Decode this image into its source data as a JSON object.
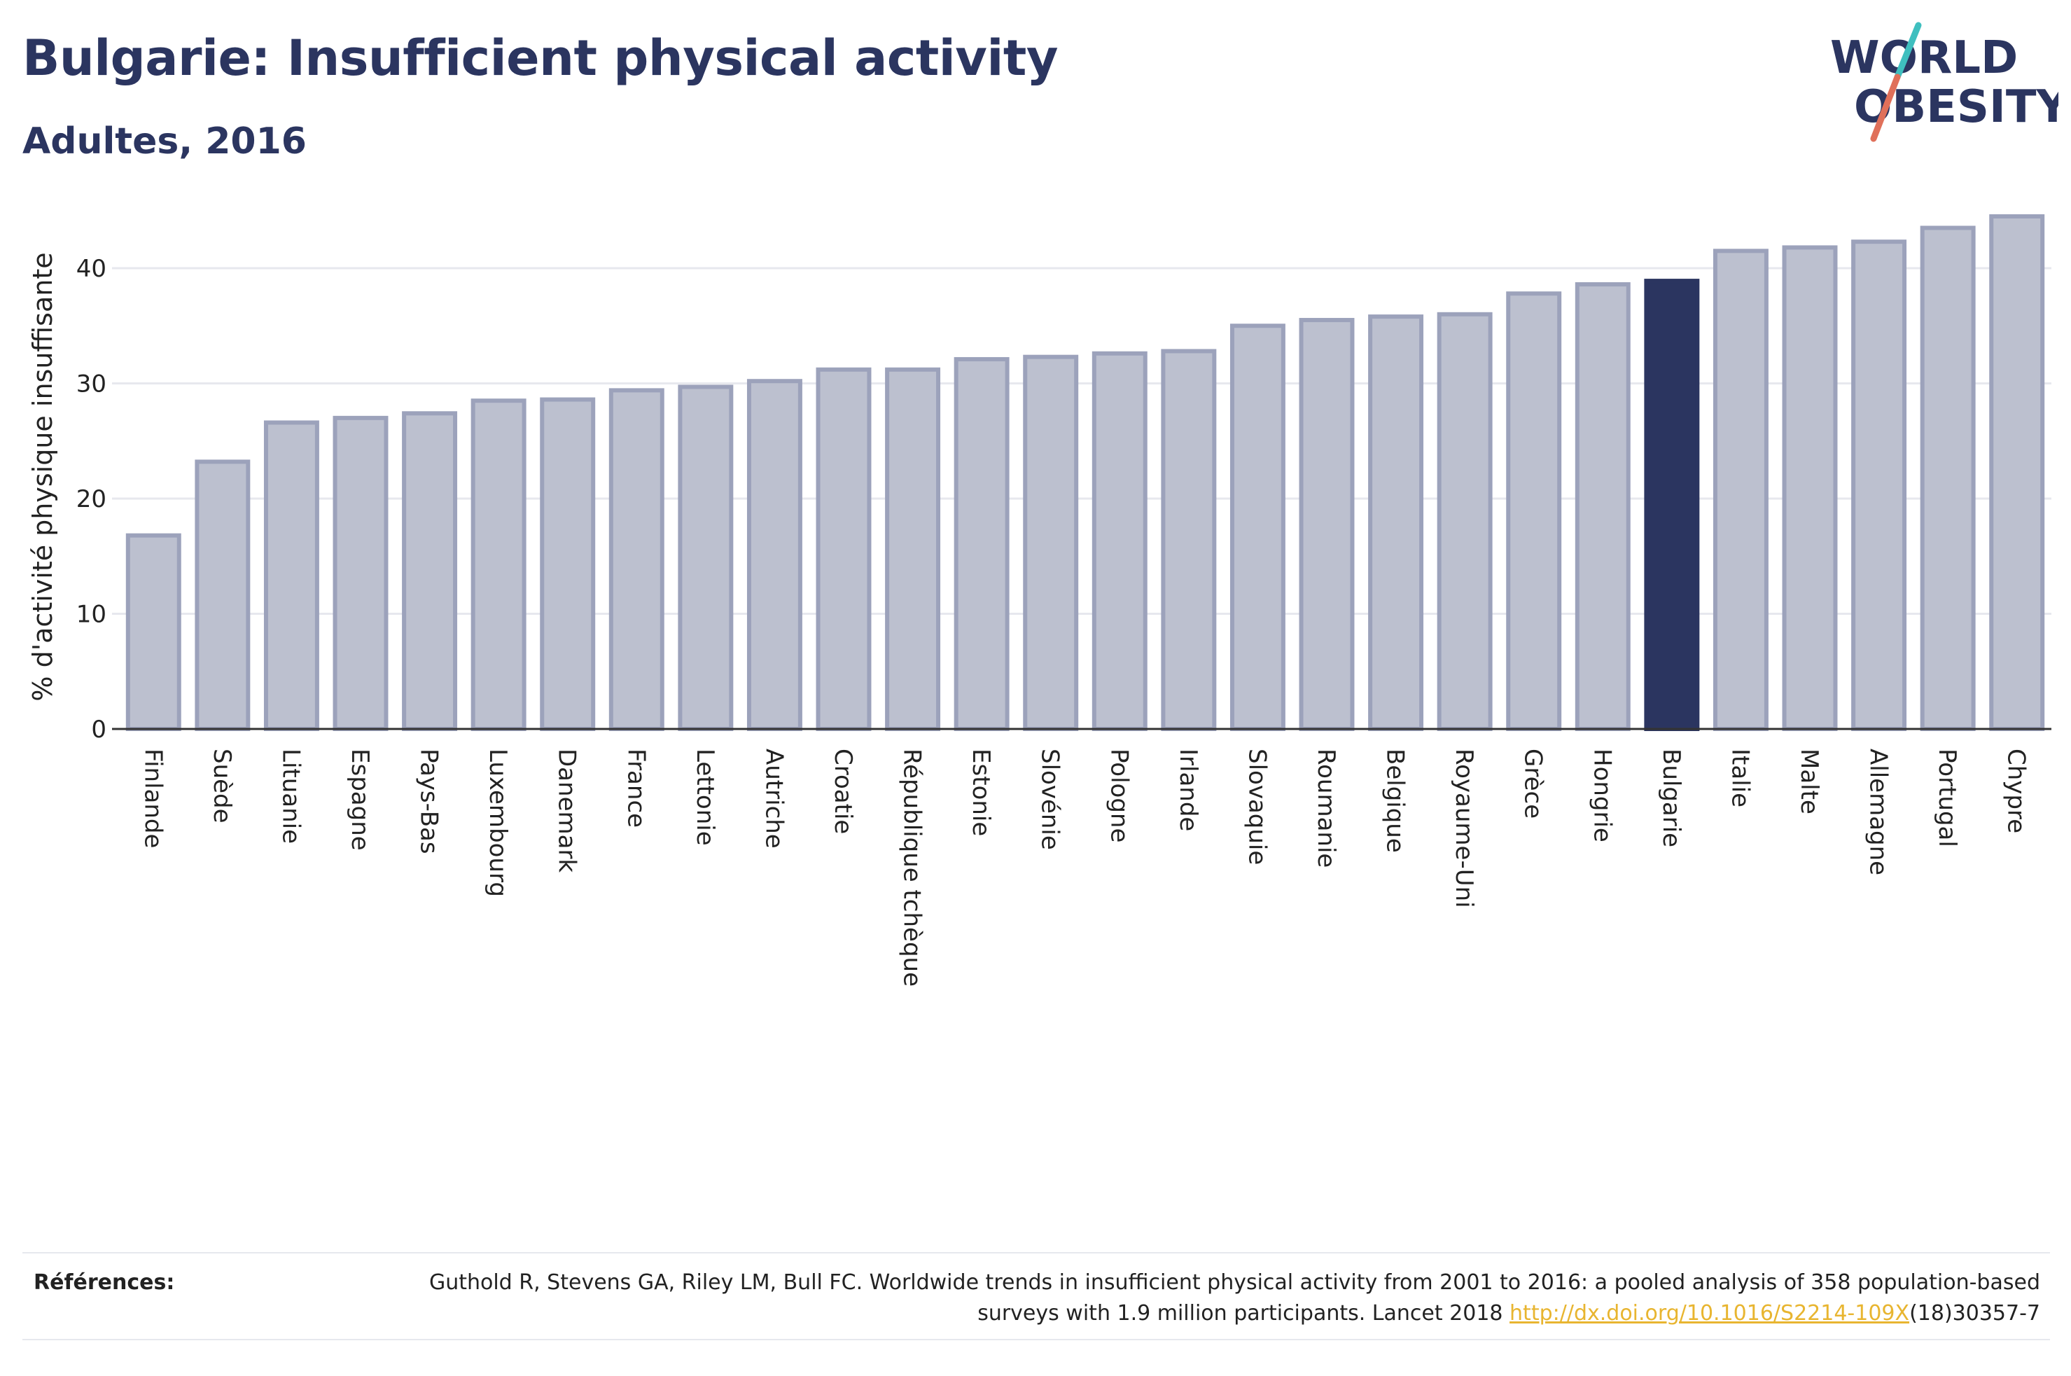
{
  "header": {
    "title": "Bulgarie: Insufficient physical activity",
    "subtitle": "Adultes, 2016"
  },
  "logo": {
    "line1": "WORLD",
    "line2": "OBESITY",
    "slash_colors": [
      "#3fbfbf",
      "#e0705a"
    ]
  },
  "chart_data": {
    "type": "bar",
    "ylabel": "% d'activité physique insuffisante",
    "ylim": [
      0,
      45
    ],
    "yticks": [
      0,
      10,
      20,
      30,
      40
    ],
    "grid": true,
    "highlight": "Bulgarie",
    "colors": {
      "default": "#bcc0cf",
      "default_border": "#9ca2bb",
      "highlight": "#2b3560"
    },
    "categories": [
      "Finlande",
      "Suède",
      "Lituanie",
      "Espagne",
      "Pays-Bas",
      "Luxembourg",
      "Danemark",
      "France",
      "Lettonie",
      "Autriche",
      "Croatie",
      "République tchèque",
      "Estonie",
      "Slovénie",
      "Pologne",
      "Irlande",
      "Slovaquie",
      "Roumanie",
      "Belgique",
      "Royaume-Uni",
      "Grèce",
      "Hongrie",
      "Bulgarie",
      "Italie",
      "Malte",
      "Allemagne",
      "Portugal",
      "Chypre"
    ],
    "values": [
      16.8,
      23.2,
      26.6,
      27.0,
      27.4,
      28.5,
      28.6,
      29.4,
      29.7,
      30.2,
      31.2,
      31.2,
      32.1,
      32.3,
      32.6,
      32.8,
      35.0,
      35.5,
      35.8,
      36.0,
      37.8,
      38.6,
      38.9,
      41.5,
      41.8,
      42.3,
      43.5,
      44.5
    ]
  },
  "references": {
    "label": "Références:",
    "text_before": "Guthold R, Stevens GA, Riley LM, Bull FC. Worldwide trends in insufficient physical activity from 2001 to 2016: a pooled analysis of 358 population-based surveys with 1.9 million participants. Lancet 2018 ",
    "link": "http://dx.doi.org/10.1016/S2214-109X",
    "text_after": "(18)30357-7"
  }
}
